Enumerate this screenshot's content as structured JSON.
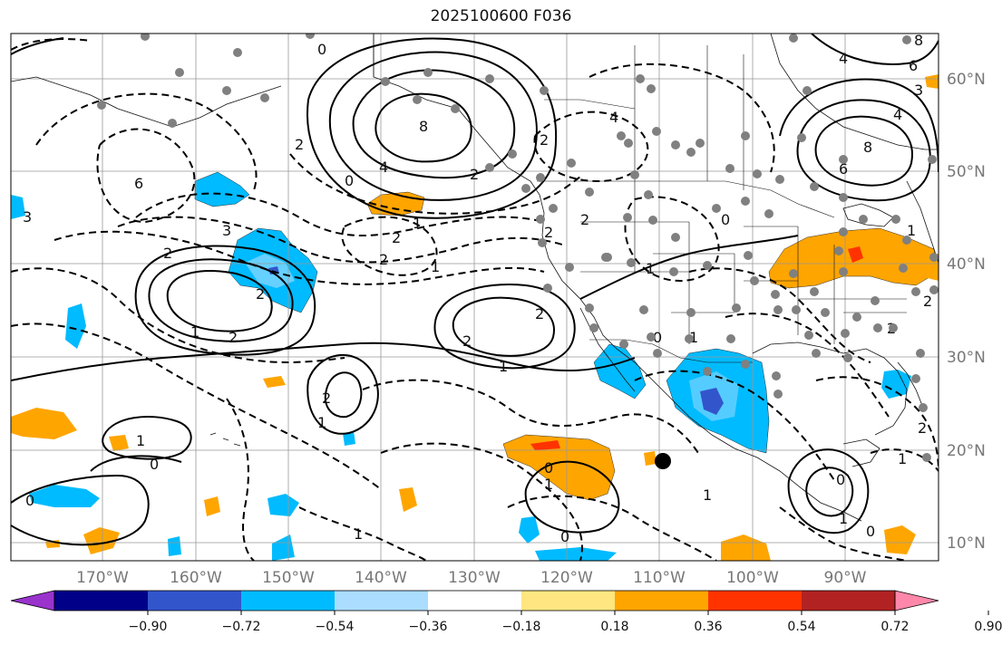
{
  "title": "2025100600 F036",
  "lat_labels": [
    "60°N",
    "50°N",
    "40°N",
    "30°N",
    "20°N",
    "10°N"
  ],
  "lon_labels": [
    "170°W",
    "160°W",
    "150°W",
    "140°W",
    "130°W",
    "120°W",
    "110°W",
    "100°W",
    "90°W"
  ],
  "colorbar": {
    "ticks": [
      "−0.90",
      "−0.72",
      "−0.54",
      "−0.36",
      "−0.18",
      "0.18",
      "0.36",
      "0.54",
      "0.72",
      "0.90"
    ],
    "colors": [
      "#9933cc",
      "#000088",
      "#3355cc",
      "#00bbff",
      "#aaddff",
      "#ffffff",
      "#ffe680",
      "#ffa500",
      "#ff3300",
      "#b22222",
      "#ff88aa"
    ]
  },
  "colors": {
    "grid": "#999999",
    "contour": "#000000",
    "axis_label": "#777777"
  }
}
